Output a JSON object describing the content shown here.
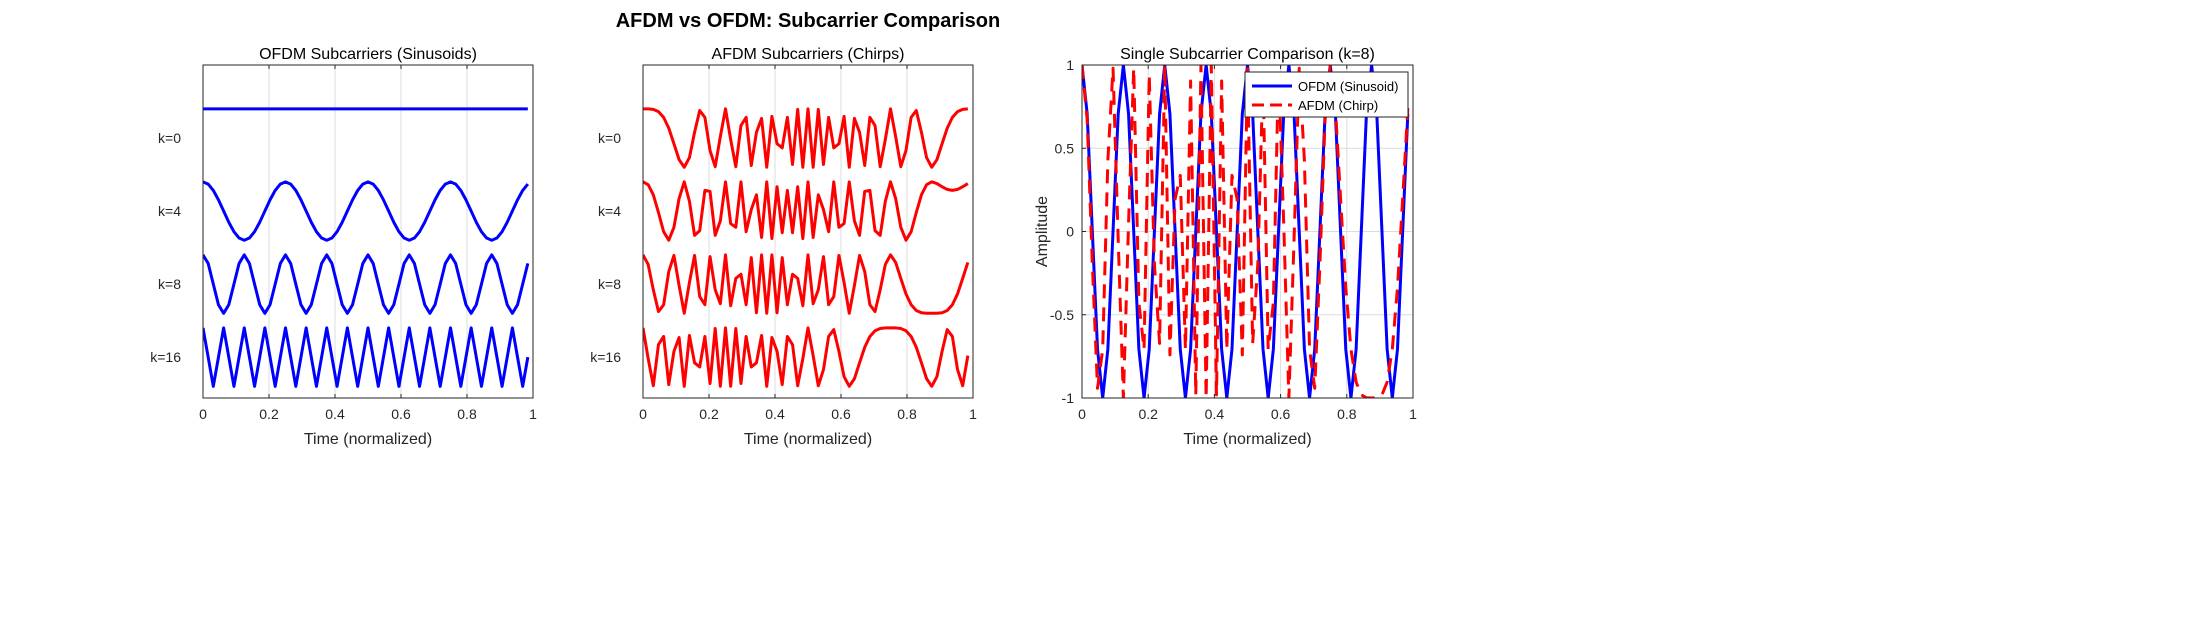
{
  "figure": {
    "title": "AFDM vs OFDM: Subcarrier Comparison"
  },
  "chart_data": [
    {
      "type": "line",
      "title": "OFDM Subcarriers (Sinusoids)",
      "xlabel": "Time (normalized)",
      "ylabel": "",
      "xlim": [
        0,
        1
      ],
      "xticks": [
        "0",
        "0.2",
        "0.4",
        "0.6",
        "0.8",
        "1"
      ],
      "ytick_labels": [
        "k=0",
        "k=4",
        "k=8",
        "k=16"
      ],
      "subcarriers": [
        0,
        4,
        8,
        16
      ],
      "samples": 64,
      "waveform": "cos(2*pi*k*n/N)",
      "color": "#0000ff",
      "grid": "x"
    },
    {
      "type": "line",
      "title": "AFDM Subcarriers (Chirps)",
      "xlabel": "Time (normalized)",
      "ylabel": "",
      "xlim": [
        0,
        1
      ],
      "xticks": [
        "0",
        "0.2",
        "0.4",
        "0.6",
        "0.8",
        "1"
      ],
      "ytick_labels": [
        "k=0",
        "k=4",
        "k=8",
        "k=16"
      ],
      "subcarriers": [
        0,
        4,
        8,
        16
      ],
      "samples": 64,
      "waveform": "cos(pi*n^2/N + 2*pi*k*n/N)",
      "color": "#ff0000",
      "grid": "x"
    },
    {
      "type": "line",
      "title": "Single Subcarrier Comparison (k=8)",
      "xlabel": "Time (normalized)",
      "ylabel": "Amplitude",
      "xlim": [
        0,
        1
      ],
      "ylim": [
        -1,
        1
      ],
      "xticks": [
        "0",
        "0.2",
        "0.4",
        "0.6",
        "0.8",
        "1"
      ],
      "yticks": [
        "-1",
        "-0.5",
        "0",
        "0.5",
        "1"
      ],
      "k": 8,
      "samples": 64,
      "grid": "both",
      "legend_position": "top-right",
      "series": [
        {
          "name": "OFDM (Sinusoid)",
          "color": "#0000ff",
          "style": "solid"
        },
        {
          "name": "AFDM (Chirp)",
          "color": "#ff0000",
          "style": "dashed"
        }
      ]
    }
  ]
}
